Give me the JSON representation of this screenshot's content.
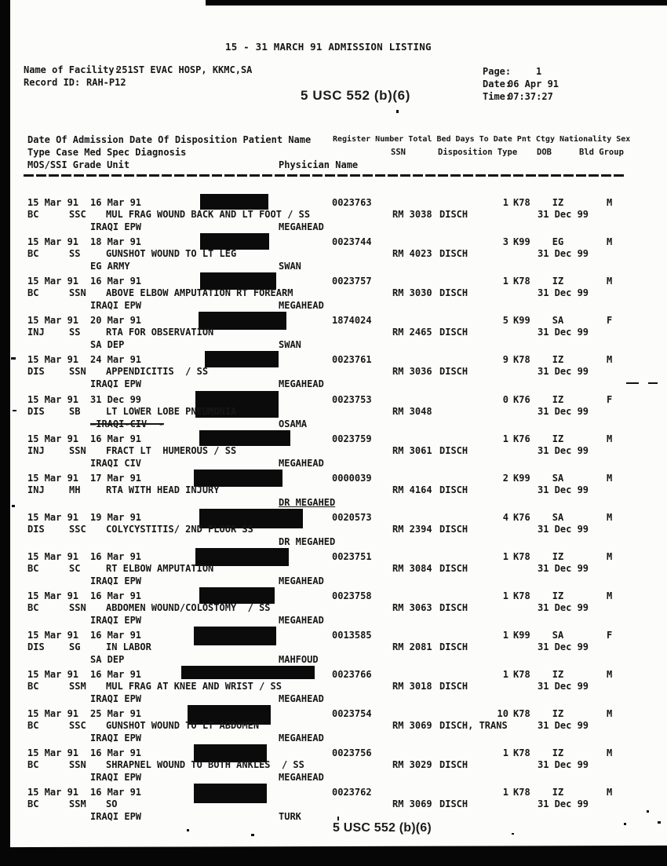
{
  "document": {
    "title": "15 - 31 MARCH 91 ADMISSION LISTING",
    "facility_label": "Name of Facility:",
    "facility_value": "251ST EVAC HOSP, KKMC,SA",
    "record_id_label": "Record ID:",
    "record_id_value": "RAH-P12",
    "page_label": "Page:",
    "page_value": "1",
    "date_label": "Date:",
    "date_value": "06 Apr 91",
    "time_label": "Time:",
    "time_value": "07:37:27",
    "foia_stamp": "5 USC 552 (b)(6)"
  },
  "table_header": {
    "line1_left": "Date Of Admission Date Of Disposition Patient Name",
    "line1_right": "Register Number Total Bed Days To Date Pnt Ctgy Nationality Sex",
    "line2_left": "Type Case Med Spec Diagnosis",
    "ssn": "SSN",
    "disposition_type": "Disposition Type",
    "dob": "DOB",
    "bld_group": "Bld Group",
    "line3_left": "MOS/SSI Grade Unit",
    "physician_name": "Physician Name"
  },
  "records": [
    {
      "adm": "15 Mar 91",
      "disp": "16 Mar 91",
      "register": "0023763",
      "bed_days": "1",
      "pnt_ctgy": "K78",
      "nationality": "IZ",
      "sex": "M",
      "type_case": "BC",
      "med_spec": "SSC",
      "diagnosis": "MUL FRAG WOUND BACK AND LT FOOT / SS",
      "room": "RM 3038",
      "disposition": "DISCH",
      "dob": "31 Dec 99",
      "unit": "IRAQI EPW",
      "physician": "MEGAHEAD"
    },
    {
      "adm": "15 Mar 91",
      "disp": "18 Mar 91",
      "register": "0023744",
      "bed_days": "3",
      "pnt_ctgy": "K99",
      "nationality": "EG",
      "sex": "M",
      "type_case": "BC",
      "med_spec": "SS",
      "diagnosis": "GUNSHOT WOUND TO LT LEG",
      "room": "RM 4023",
      "disposition": "DISCH",
      "dob": "31 Dec 99",
      "unit": "EG ARMY",
      "physician": "SWAN"
    },
    {
      "adm": "15 Mar 91",
      "disp": "16 Mar 91",
      "register": "0023757",
      "bed_days": "1",
      "pnt_ctgy": "K78",
      "nationality": "IZ",
      "sex": "M",
      "type_case": "BC",
      "med_spec": "SSN",
      "diagnosis": "ABOVE ELBOW AMPUTATION RT FOREARM",
      "room": "RM 3030",
      "disposition": "DISCH",
      "dob": "31 Dec 99",
      "unit": "IRAQI EPW",
      "physician": "MEGAHEAD"
    },
    {
      "adm": "15 Mar 91",
      "disp": "20 Mar 91",
      "register": "1874024",
      "bed_days": "5",
      "pnt_ctgy": "K99",
      "nationality": "SA",
      "sex": "F",
      "type_case": "INJ",
      "med_spec": "SS",
      "diagnosis": "RTA FOR OBSERVATION",
      "room": "RM 2465",
      "disposition": "DISCH",
      "dob": "31 Dec 99",
      "unit": "SA DEP",
      "physician": "SWAN"
    },
    {
      "adm": "15 Mar 91",
      "disp": "24 Mar 91",
      "register": "0023761",
      "bed_days": "9",
      "pnt_ctgy": "K78",
      "nationality": "IZ",
      "sex": "M",
      "type_case": "DIS",
      "med_spec": "SSN",
      "diagnosis": "APPENDICITIS  / SS",
      "room": "RM 3036",
      "disposition": "DISCH",
      "dob": "31 Dec 99",
      "unit": "IRAQI EPW",
      "physician": "MEGAHEAD"
    },
    {
      "adm": "15 Mar 91",
      "disp": "31 Dec 99",
      "register": "0023753",
      "bed_days": "0",
      "pnt_ctgy": "K76",
      "nationality": "IZ",
      "sex": "F",
      "type_case": "DIS",
      "med_spec": "SB",
      "diagnosis": "LT LOWER LOBE PNEUMONIA",
      "room": "RM 3048",
      "disposition": "",
      "dob": "31 Dec 99",
      "unit": "—IRAQI-CIV  -",
      "unit_struck": true,
      "physician": "OSAMA"
    },
    {
      "adm": "15 Mar 91",
      "disp": "16 Mar 91",
      "register": "0023759",
      "bed_days": "1",
      "pnt_ctgy": "K76",
      "nationality": "IZ",
      "sex": "M",
      "type_case": "INJ",
      "med_spec": "SSN",
      "diagnosis": "FRACT LT  HUMEROUS / SS",
      "room": "RM 3061",
      "disposition": "DISCH",
      "dob": "31 Dec 99",
      "unit": "IRAQI CIV",
      "physician": "MEGAHEAD"
    },
    {
      "adm": "15 Mar 91",
      "disp": "17 Mar 91",
      "register": "0000039",
      "bed_days": "2",
      "pnt_ctgy": "K99",
      "nationality": "SA",
      "sex": "M",
      "type_case": "INJ",
      "med_spec": "MH",
      "diagnosis": "RTA WITH HEAD INJURY",
      "room": "RM 4164",
      "disposition": "DISCH",
      "dob": "31 Dec 99",
      "unit": "",
      "physician": "DR MEGAHED",
      "physician_underline": true
    },
    {
      "adm": "15 Mar 91",
      "disp": "19 Mar 91",
      "register": "0020573",
      "bed_days": "4",
      "pnt_ctgy": "K76",
      "nationality": "SA",
      "sex": "M",
      "type_case": "DIS",
      "med_spec": "SSC",
      "diagnosis": "COLYCYSTITIS/ 2ND FLOOR SS",
      "room": "RM 2394",
      "disposition": "DISCH",
      "dob": "31 Dec 99",
      "unit": "",
      "physician": "DR MEGAHED"
    },
    {
      "adm": "15 Mar 91",
      "disp": "16 Mar 91",
      "register": "0023751",
      "bed_days": "1",
      "pnt_ctgy": "K78",
      "nationality": "IZ",
      "sex": "M",
      "type_case": "BC",
      "med_spec": "SC",
      "diagnosis": "RT ELBOW AMPUTATION",
      "room": "RM 3084",
      "disposition": "DISCH",
      "dob": "31 Dec 99",
      "unit": "IRAQI EPW",
      "physician": "MEGAHEAD"
    },
    {
      "adm": "15 Mar 91",
      "disp": "16 Mar 91",
      "register": "0023758",
      "bed_days": "1",
      "pnt_ctgy": "K78",
      "nationality": "IZ",
      "sex": "M",
      "type_case": "BC",
      "med_spec": "SSN",
      "diagnosis": "ABDOMEN WOUND/COLOSTOMY  / SS",
      "room": "RM 3063",
      "disposition": "DISCH",
      "dob": "31 Dec 99",
      "unit": "IRAQI EPW",
      "physician": "MEGAHEAD"
    },
    {
      "adm": "15 Mar 91",
      "disp": "16 Mar 91",
      "register": "0013585",
      "bed_days": "1",
      "pnt_ctgy": "K99",
      "nationality": "SA",
      "sex": "F",
      "type_case": "DIS",
      "med_spec": "SG",
      "diagnosis": "IN LABOR",
      "room": "RM 2081",
      "disposition": "DISCH",
      "dob": "31 Dec 99",
      "unit": "SA DEP",
      "physician": "MAHFOUD"
    },
    {
      "adm": "15 Mar 91",
      "disp": "16 Mar 91",
      "register": "0023766",
      "bed_days": "1",
      "pnt_ctgy": "K78",
      "nationality": "IZ",
      "sex": "M",
      "type_case": "BC",
      "med_spec": "SSM",
      "diagnosis": "MUL FRAG AT KNEE AND WRIST / SS",
      "room": "RM 3018",
      "disposition": "DISCH",
      "dob": "31 Dec 99",
      "unit": "IRAQI EPW",
      "physician": "MEGAHEAD"
    },
    {
      "adm": "15 Mar 91",
      "disp": "25 Mar 91",
      "register": "0023754",
      "bed_days": "10",
      "pnt_ctgy": "K78",
      "nationality": "IZ",
      "sex": "M",
      "type_case": "BC",
      "med_spec": "SSC",
      "diagnosis": "GUNSHOT WOUND TO LT ABDOMEN",
      "room": "RM 3069",
      "disposition": "DISCH, TRANS",
      "dob": "31 Dec 99",
      "unit": "IRAQI EPW",
      "physician": "MEGAHEAD"
    },
    {
      "adm": "15 Mar 91",
      "disp": "16 Mar 91",
      "register": "0023756",
      "bed_days": "1",
      "pnt_ctgy": "K78",
      "nationality": "IZ",
      "sex": "M",
      "type_case": "BC",
      "med_spec": "SSN",
      "diagnosis": "SHRAPNEL WOUND TO BOTH ANKLES  / SS",
      "room": "RM 3029",
      "disposition": "DISCH",
      "dob": "31 Dec 99",
      "unit": "IRAQI EPW",
      "physician": "MEGAHEAD"
    },
    {
      "adm": "15 Mar 91",
      "disp": "16 Mar 91",
      "register": "0023762",
      "bed_days": "1",
      "pnt_ctgy": "K78",
      "nationality": "IZ",
      "sex": "M",
      "type_case": "BC",
      "med_spec": "SSM",
      "diagnosis": "SO",
      "room": "RM 3069",
      "disposition": "DISCH",
      "dob": "31 Dec 99",
      "unit": "IRAQI EPW",
      "physician": "TURK"
    }
  ]
}
